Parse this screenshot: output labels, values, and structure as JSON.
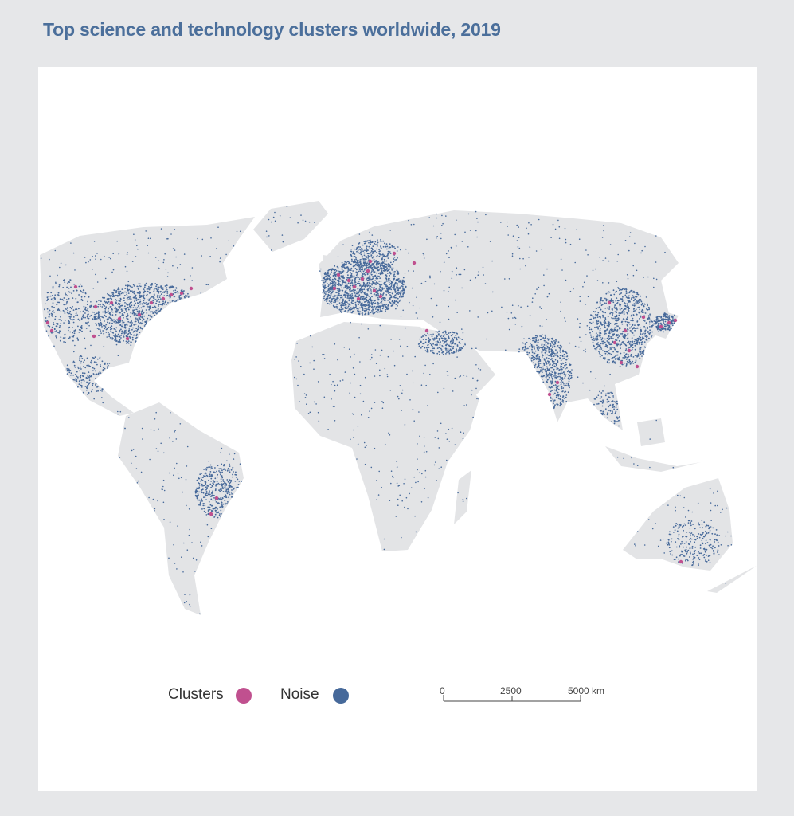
{
  "title": "Top science and technology clusters worldwide, 2019",
  "legend": {
    "items": [
      {
        "label": "Clusters",
        "color": "#c0508f"
      },
      {
        "label": "Noise",
        "color": "#46699a"
      }
    ]
  },
  "scale_bar": {
    "ticks": [
      "0",
      "2500",
      "5000 km"
    ]
  },
  "colors": {
    "land": "#e3e4e6",
    "background": "#e6e7e9",
    "panel": "#ffffff"
  }
}
